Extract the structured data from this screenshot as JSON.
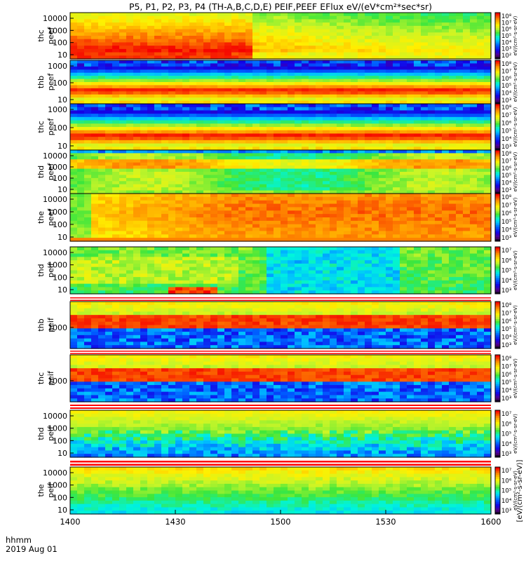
{
  "title": "P5, P1, P2, P3, P4 (TH-A,B,C,D,E) PEIF,PEEF EFlux eV/(eV*cm²*sec*sr)",
  "footer": {
    "time_unit": "hhmm",
    "date": "2019 Aug 01"
  },
  "chart_data": {
    "type": "heatmap",
    "x_ticks": [
      "1400",
      "1430",
      "1500",
      "1530",
      "1600"
    ],
    "x_range": [
      "1400",
      "1600"
    ],
    "colorbar_label": "[eV/(cm²-s-sr-eV)]",
    "panels": [
      {
        "probe": "thc",
        "quantity": "peef",
        "y_ticks": [
          "10000",
          "1000",
          "100",
          "10"
        ],
        "cbar_ticks": [
          "10⁸",
          "10⁷",
          "10⁶",
          "10⁵",
          "10⁴",
          "10³",
          "10²"
        ],
        "profile": "elow",
        "cbar_label": "eV/(cm²-s-sr-eV)"
      },
      {
        "probe": "thb",
        "quantity": "peef",
        "y_ticks": [
          "1000",
          "100",
          "10"
        ],
        "cbar_ticks": [
          "10⁸",
          "10⁷",
          "10⁶",
          "10⁵",
          "10⁴",
          "10³"
        ],
        "profile": "ebelt",
        "cbar_label": "eV/(cm²-s-sr-eV)"
      },
      {
        "probe": "thc",
        "quantity": "peef",
        "y_ticks": [
          "1000",
          "100",
          "10"
        ],
        "cbar_ticks": [
          "10⁸",
          "10⁷",
          "10⁶",
          "10⁵",
          "10⁴",
          "10³"
        ],
        "profile": "ebelt",
        "cbar_label": "eV/(cm²-s-sr-eV)"
      },
      {
        "probe": "thd",
        "quantity": "peef",
        "y_ticks": [
          "10000",
          "1000",
          "100",
          "10"
        ],
        "cbar_ticks": [
          "10⁸",
          "10⁷",
          "10⁶",
          "10⁵",
          "10⁴",
          "10³"
        ],
        "profile": "emid",
        "cbar_label": "eV/(cm²-s-sr-eV)"
      },
      {
        "probe": "the",
        "quantity": "peef",
        "y_ticks": [
          "10000",
          "1000",
          "100",
          "10"
        ],
        "cbar_ticks": [
          "10⁸",
          "10⁷",
          "10⁶",
          "10⁵",
          "10⁴",
          "10³"
        ],
        "profile": "ehot",
        "cbar_label": "eV/(cm²-s-sr-eV)"
      },
      {
        "probe": "thd",
        "quantity": "peif",
        "y_ticks": [
          "10000",
          "1000",
          "100",
          "10"
        ],
        "cbar_ticks": [
          "10⁷",
          "10⁶",
          "10⁵",
          "10⁴",
          "10³"
        ],
        "profile": "iA",
        "cbar_label": "eV/(cm²-s-sr-eV)"
      },
      {
        "probe": "thb",
        "quantity": "peif",
        "y_ticks": [
          "1000"
        ],
        "cbar_ticks": [
          "10⁸",
          "10⁷",
          "10⁶",
          "10⁵",
          "10⁴",
          "10³"
        ],
        "profile": "iB",
        "cbar_label": "eV/(cm²-s-sr-eV)"
      },
      {
        "probe": "thc",
        "quantity": "peif",
        "y_ticks": [
          "1000"
        ],
        "cbar_ticks": [
          "10⁸",
          "10⁷",
          "10⁶",
          "10⁵",
          "10⁴",
          "10³"
        ],
        "profile": "iB",
        "cbar_label": "eV/(cm²-s-sr-eV)"
      },
      {
        "probe": "thd",
        "quantity": "peif",
        "y_ticks": [
          "10000",
          "1000",
          "100",
          "10"
        ],
        "cbar_ticks": [
          "10⁷",
          "10⁶",
          "10⁵",
          "10⁴",
          "10³"
        ],
        "profile": "iD",
        "cbar_label": "eV/(cm²-s-sr-eV)"
      },
      {
        "probe": "the",
        "quantity": "peif",
        "y_ticks": [
          "10000",
          "1000",
          "100",
          "10"
        ],
        "cbar_ticks": [
          "10⁷",
          "10⁶",
          "10⁵",
          "10⁴",
          "10³"
        ],
        "profile": "iE",
        "cbar_label": "eV/(cm²-s-sr-eV)"
      }
    ]
  }
}
